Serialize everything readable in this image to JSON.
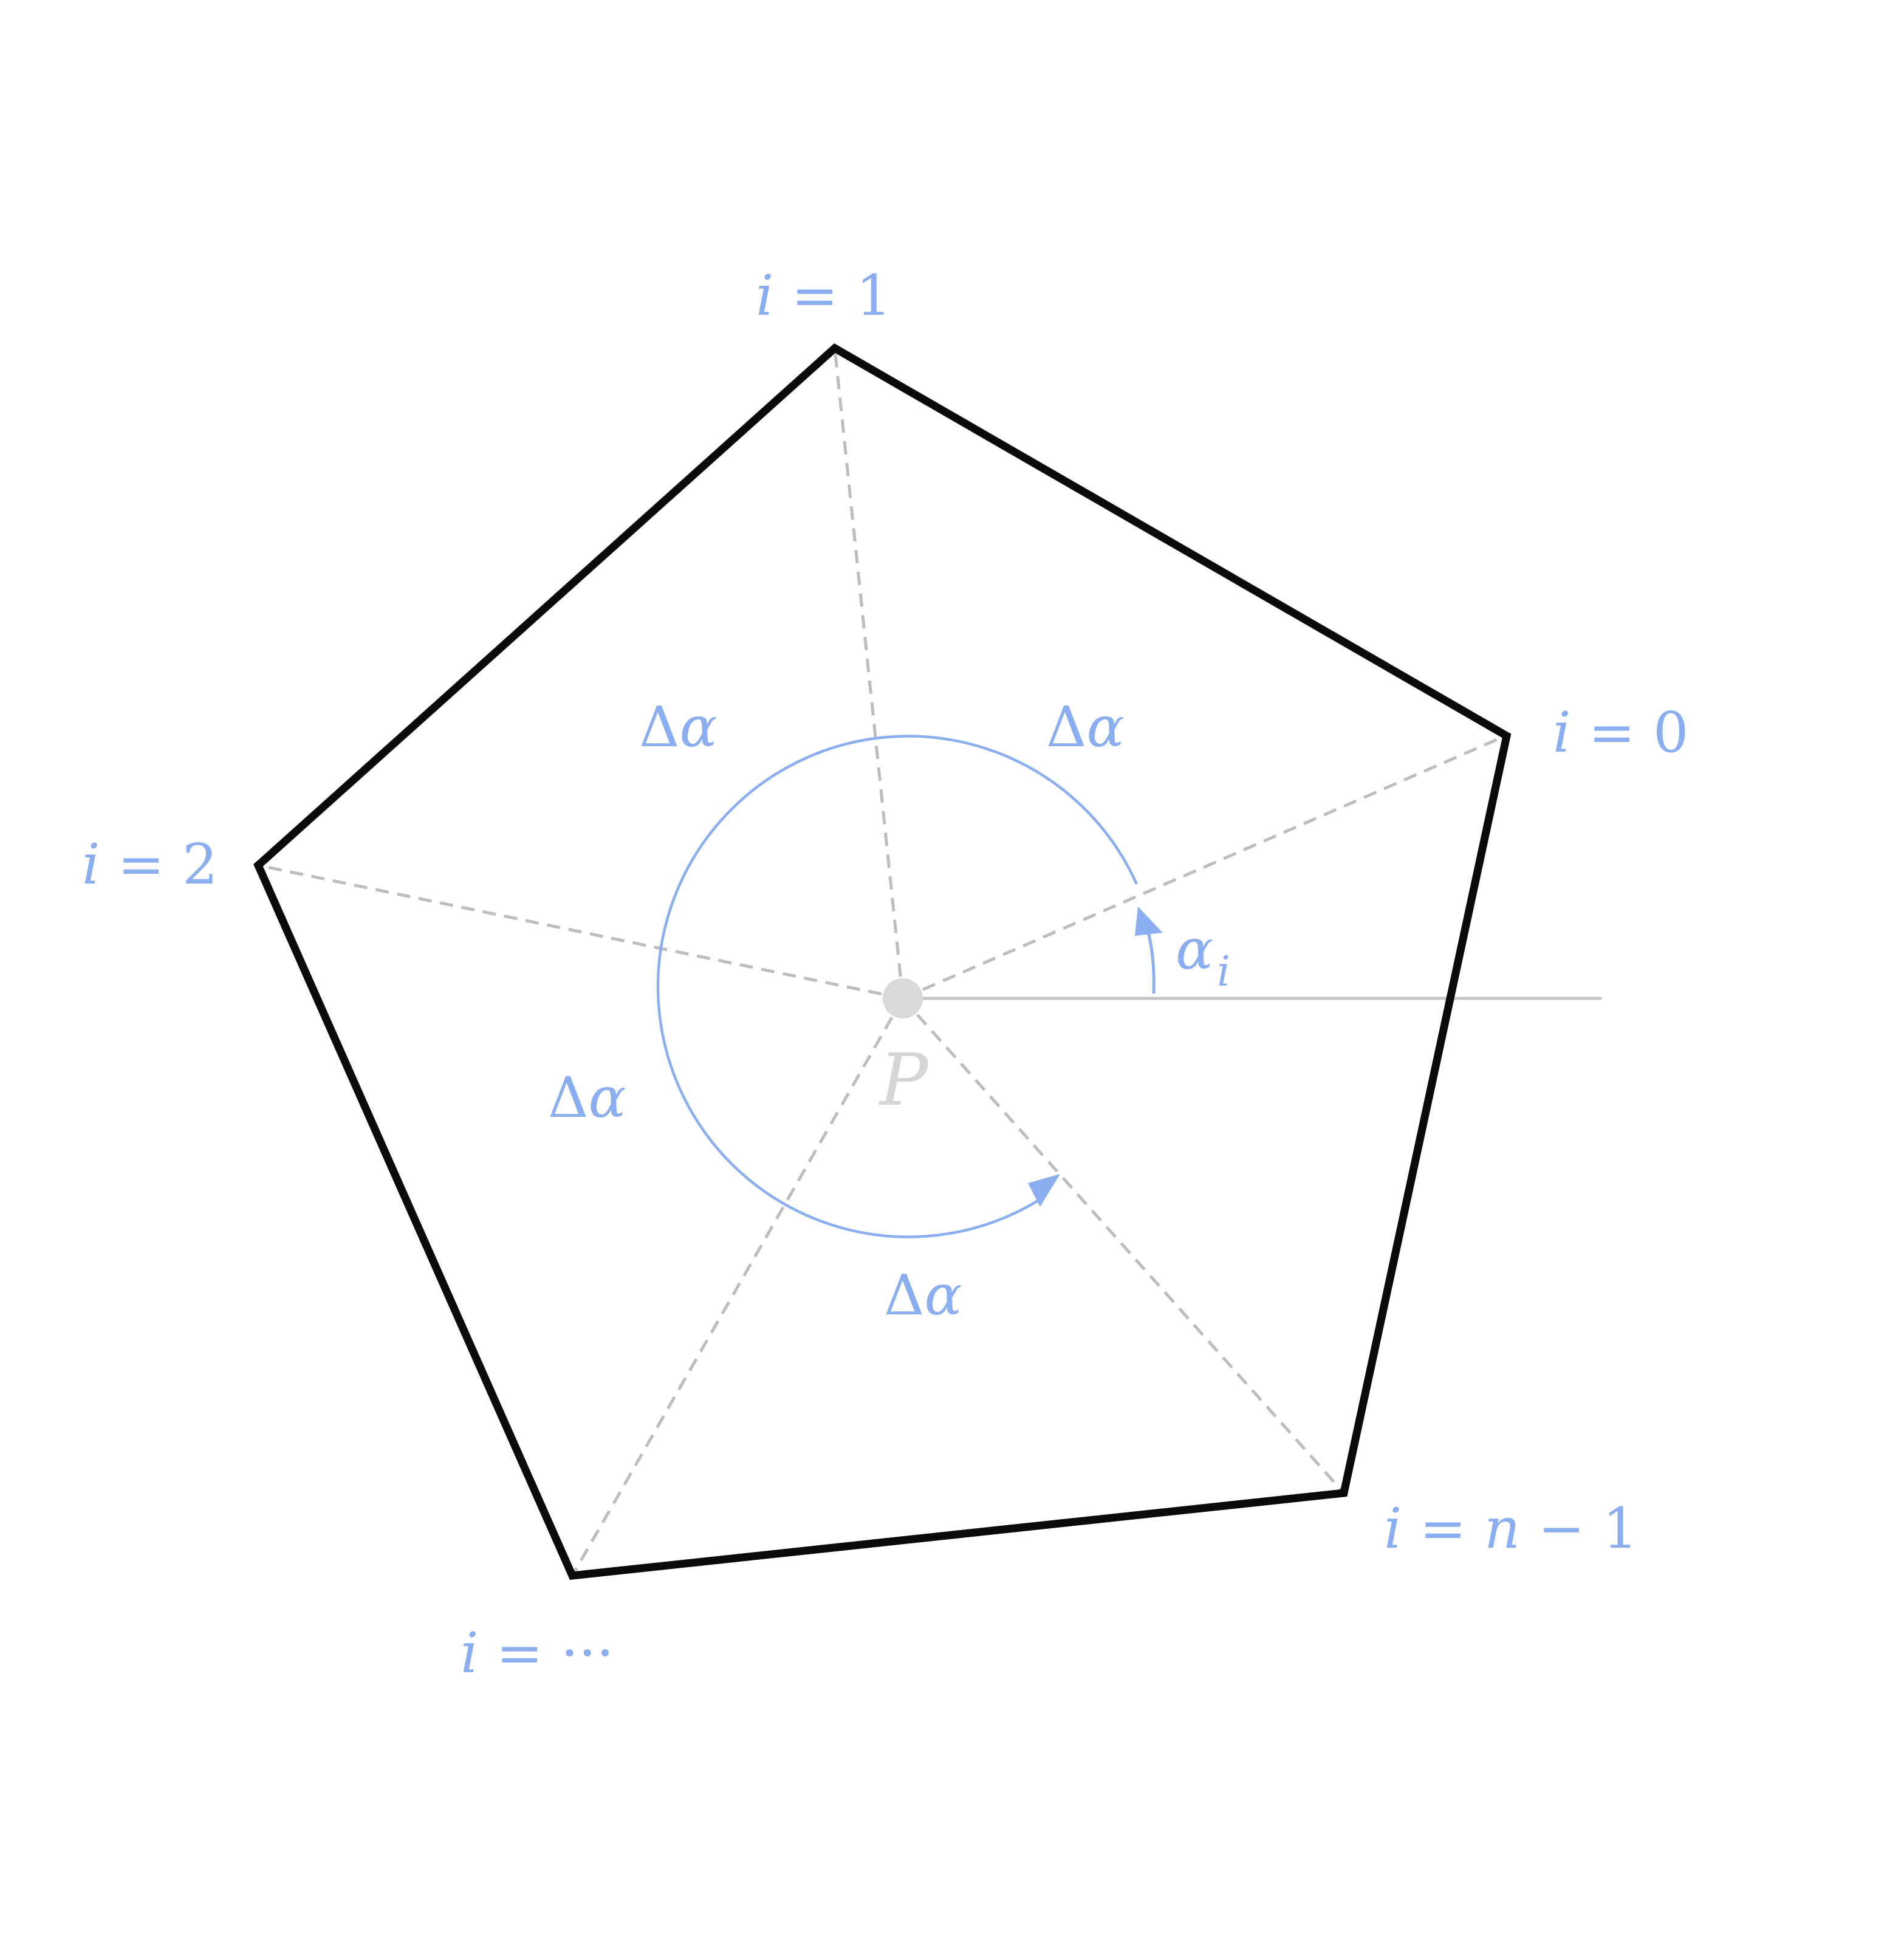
{
  "colors": {
    "polygon": "#0a0a0a",
    "dashed_spoke": "#bdbdbd",
    "reference_line": "#c4c4c4",
    "annotation": "#8aaef0",
    "center_point": "#d9d9d9"
  },
  "vertex_labels": [
    {
      "var": "i",
      "rest": " = 0"
    },
    {
      "var": "i",
      "rest": " = 1"
    },
    {
      "var": "i",
      "rest": " = 2"
    },
    {
      "var": "i",
      "rest": " = ···"
    },
    {
      "var": "i",
      "rest": " = ",
      "var2": "n",
      "rest2": " − 1"
    }
  ],
  "delta_label": {
    "prefix": "Δ",
    "var": "α"
  },
  "alpha_label": {
    "var": "α",
    "sub": "i"
  },
  "center_label": "P"
}
